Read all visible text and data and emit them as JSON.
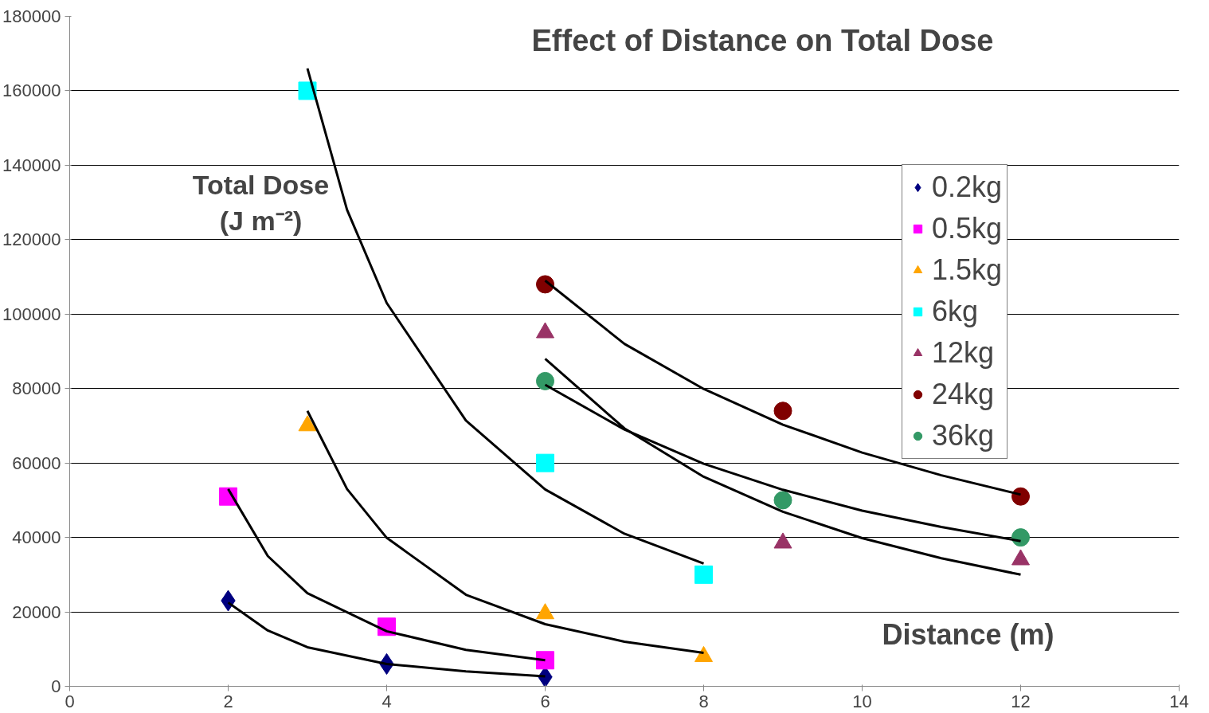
{
  "chart_data": {
    "type": "scatter",
    "title": "Effect of Distance on Total Dose",
    "xlabel": "Distance (m)",
    "ylabel": "Total Dose\n(J m⁻²)",
    "xlim": [
      0,
      14
    ],
    "xticks": [
      0,
      2,
      4,
      6,
      8,
      10,
      12,
      14
    ],
    "ylim": [
      0,
      180000
    ],
    "yticks": [
      0,
      20000,
      40000,
      60000,
      80000,
      100000,
      120000,
      140000,
      160000,
      180000
    ],
    "grid": "y",
    "legend": "top right",
    "series": [
      {
        "name": "0.2kg",
        "color": "#000080",
        "marker": "diamond",
        "x": [
          2,
          4,
          6
        ],
        "values": [
          23000,
          6000,
          2500
        ]
      },
      {
        "name": "0.5kg",
        "color": "#ff00ff",
        "marker": "square",
        "x": [
          2,
          4,
          6
        ],
        "values": [
          51000,
          16000,
          7000
        ]
      },
      {
        "name": "1.5kg",
        "color": "#ffa500",
        "marker": "triangle",
        "x": [
          3,
          6,
          8
        ],
        "values": [
          70000,
          19500,
          8000
        ]
      },
      {
        "name": "6kg",
        "color": "#00ffff",
        "marker": "square",
        "x": [
          3,
          6,
          8
        ],
        "values": [
          160000,
          60000,
          30000
        ]
      },
      {
        "name": "12kg",
        "color": "#993366",
        "marker": "triangle",
        "x": [
          6,
          9,
          12
        ],
        "values": [
          95000,
          38500,
          34000
        ]
      },
      {
        "name": "24kg",
        "color": "#800000",
        "marker": "circle",
        "x": [
          6,
          9,
          12
        ],
        "values": [
          108000,
          74000,
          51000
        ]
      },
      {
        "name": "36kg",
        "color": "#339966",
        "marker": "circle",
        "x": [
          6,
          9,
          12
        ],
        "values": [
          82000,
          50000,
          40000
        ]
      },
      {
        "type": "line",
        "color": "#000000",
        "x": [
          2,
          2.5,
          3,
          4,
          5,
          6
        ],
        "values": [
          22500,
          15000,
          10500,
          6000,
          4000,
          2700
        ]
      },
      {
        "type": "line",
        "color": "#000000",
        "x": [
          2,
          2.5,
          3,
          4,
          5,
          6
        ],
        "values": [
          53000,
          35000,
          25000,
          14800,
          9800,
          7000
        ]
      },
      {
        "type": "line",
        "color": "#000000",
        "x": [
          3,
          3.5,
          4,
          5,
          6,
          7,
          8
        ],
        "values": [
          74000,
          53000,
          39900,
          24600,
          16700,
          12000,
          9000
        ]
      },
      {
        "type": "line",
        "color": "#000000",
        "x": [
          3,
          3.5,
          4,
          5,
          6,
          7,
          8
        ],
        "values": [
          166000,
          128000,
          103000,
          71400,
          52900,
          41000,
          33000
        ]
      },
      {
        "type": "line",
        "color": "#000000",
        "x": [
          6,
          7,
          8,
          9,
          10,
          11,
          12
        ],
        "values": [
          88000,
          69300,
          56300,
          46900,
          39800,
          34400,
          30000
        ]
      },
      {
        "type": "line",
        "color": "#000000",
        "x": [
          6,
          7,
          8,
          9,
          10,
          11,
          12
        ],
        "values": [
          109000,
          92000,
          79900,
          70300,
          62800,
          56700,
          51500
        ]
      },
      {
        "type": "line",
        "color": "#000000",
        "x": [
          6,
          7,
          8,
          9,
          10,
          11,
          12
        ],
        "values": [
          81000,
          69000,
          59800,
          52800,
          47200,
          42800,
          39000
        ]
      }
    ]
  }
}
